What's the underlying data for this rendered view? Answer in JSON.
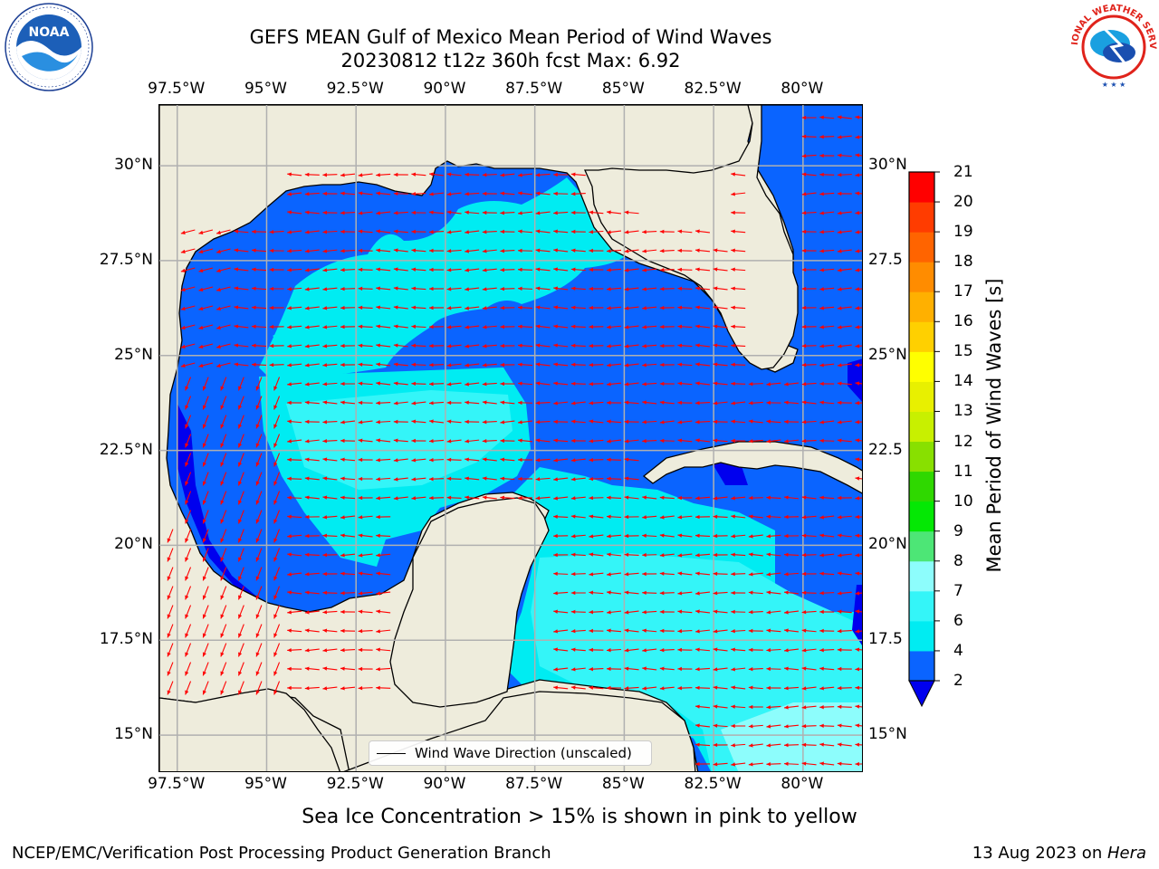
{
  "chart_data": {
    "type": "heatmap",
    "title": "GEFS MEAN Gulf of Mexico Mean Period of Wind Waves",
    "subtitle": "20230812 t12z 360h fcst   Max: 6.92",
    "field": "Mean Period of Wind Waves [s]",
    "max_value": 6.92,
    "x_ticks": [
      "97.5°W",
      "95°W",
      "92.5°W",
      "90°W",
      "87.5°W",
      "85°W",
      "82.5°W",
      "80°W"
    ],
    "x_tick_values": [
      -97.5,
      -95,
      -92.5,
      -90,
      -87.5,
      -85,
      -82.5,
      -80
    ],
    "y_ticks_left": [
      "30°N",
      "27.5°N",
      "25°N",
      "22.5°N",
      "20°N",
      "17.5°N",
      "15°N"
    ],
    "y_ticks_right": [
      "30°N",
      "27.5",
      "25°N",
      "22.5",
      "20°N",
      "17.5",
      "15°N"
    ],
    "y_tick_values": [
      30,
      27.5,
      25,
      22.5,
      20,
      17.5,
      15
    ],
    "lon_range": [
      -98,
      -78.3
    ],
    "lat_range": [
      14,
      31.6
    ],
    "grid": true,
    "colorbar": {
      "label": "Mean Period of Wind Waves [s]",
      "levels": [
        2,
        4,
        6,
        7,
        8,
        9,
        10,
        11,
        12,
        13,
        14,
        15,
        16,
        17,
        18,
        19,
        20,
        21
      ],
      "colors": [
        "#0a64ff",
        "#00ecf2",
        "#34f5f8",
        "#8dfdfc",
        "#4de676",
        "#04e804",
        "#2fd800",
        "#88e000",
        "#c8f000",
        "#e8f000",
        "#ffff00",
        "#ffd000",
        "#ffb000",
        "#ff8c00",
        "#ff6400",
        "#ff3c00",
        "#ff0000"
      ],
      "extend_min_color": "#0000ee",
      "position": "right"
    },
    "legend": {
      "position": "bottom-center",
      "entries": [
        "Wind Wave Direction (unscaled)"
      ]
    },
    "annotation": "Sea Ice Concentration > 15% is shown in pink to yellow"
  },
  "map": {
    "land_color": "#eeecdc",
    "arrow_color": "#ff0000",
    "grid_color": "#b0b0b0"
  },
  "legend": {
    "label": "Wind Wave Direction (unscaled)"
  },
  "notes": {
    "sea_ice": "Sea Ice Concentration > 15% is shown in pink to yellow"
  },
  "footer": {
    "left": "NCEP/EMC/Verification Post Processing Product Generation Branch",
    "date": "13 Aug 2023 on ",
    "host": "Hera"
  },
  "logos": {
    "noaa_text": "NOAA",
    "nws_text": "NATIONAL WEATHER SERVICE"
  }
}
